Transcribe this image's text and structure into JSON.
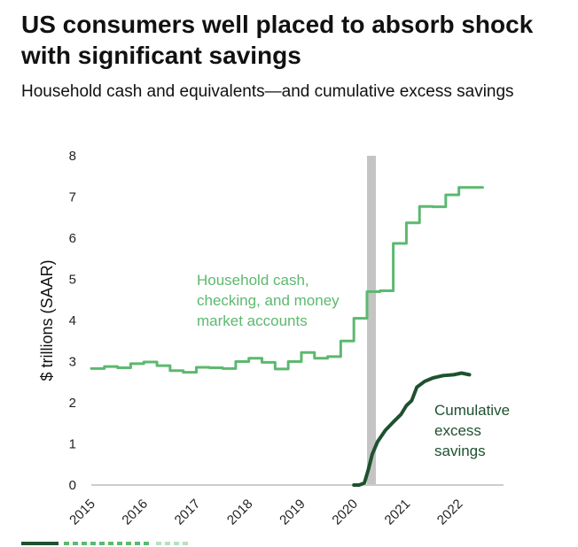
{
  "header": {
    "title": "US consumers well placed to absorb shock with significant savings",
    "subtitle": "Household cash and equivalents—and cumulative excess savings"
  },
  "colors": {
    "household": "#5cb96f",
    "excess": "#1f5130",
    "shade": "#c4c4c4",
    "axis": "#cccccc"
  },
  "chart_data": {
    "type": "line",
    "ylabel": "$ trillions (SAAR)",
    "xlabel": "",
    "xlim": [
      2015,
      2022.85
    ],
    "ylim": [
      0,
      8
    ],
    "yticks": [
      0,
      1,
      2,
      3,
      4,
      5,
      6,
      7,
      8
    ],
    "xticks": [
      "2015",
      "2016",
      "2017",
      "2018",
      "2019",
      "2020",
      "2021",
      "2022"
    ],
    "shaded_period": [
      2020.25,
      2020.42
    ],
    "series": [
      {
        "key": "household",
        "name": "Household cash, checking, and money market accounts",
        "step": true,
        "x": [
          2015.0,
          2015.25,
          2015.5,
          2015.75,
          2016.0,
          2016.25,
          2016.5,
          2016.75,
          2017.0,
          2017.25,
          2017.5,
          2017.75,
          2018.0,
          2018.25,
          2018.5,
          2018.75,
          2019.0,
          2019.25,
          2019.5,
          2019.75,
          2020.0,
          2020.25,
          2020.5,
          2020.75,
          2021.0,
          2021.25,
          2021.5,
          2021.75,
          2022.0,
          2022.25
        ],
        "y": [
          2.83,
          2.88,
          2.85,
          2.95,
          2.99,
          2.9,
          2.78,
          2.74,
          2.86,
          2.85,
          2.83,
          3.0,
          3.08,
          2.98,
          2.82,
          3.0,
          3.22,
          3.08,
          3.12,
          3.5,
          4.05,
          4.7,
          4.72,
          5.87,
          6.37,
          6.77,
          6.76,
          7.05,
          7.23,
          7.23
        ]
      },
      {
        "key": "excess",
        "name": "Cumulative excess savings",
        "step": false,
        "x": [
          2020.0,
          2020.1,
          2020.2,
          2020.27,
          2020.35,
          2020.45,
          2020.6,
          2020.75,
          2020.9,
          2021.0,
          2021.1,
          2021.2,
          2021.35,
          2021.5,
          2021.7,
          2021.9,
          2022.05,
          2022.2
        ],
        "y": [
          0.0,
          0.0,
          0.05,
          0.35,
          0.75,
          1.05,
          1.33,
          1.53,
          1.72,
          1.93,
          2.05,
          2.38,
          2.52,
          2.6,
          2.66,
          2.68,
          2.72,
          2.68
        ]
      }
    ],
    "annotations": [
      {
        "key": "household",
        "lines": [
          "Household cash,",
          "checking, and money",
          "market accounts"
        ]
      },
      {
        "key": "excess",
        "lines": [
          "Cumulative",
          "excess",
          "savings"
        ]
      }
    ]
  }
}
